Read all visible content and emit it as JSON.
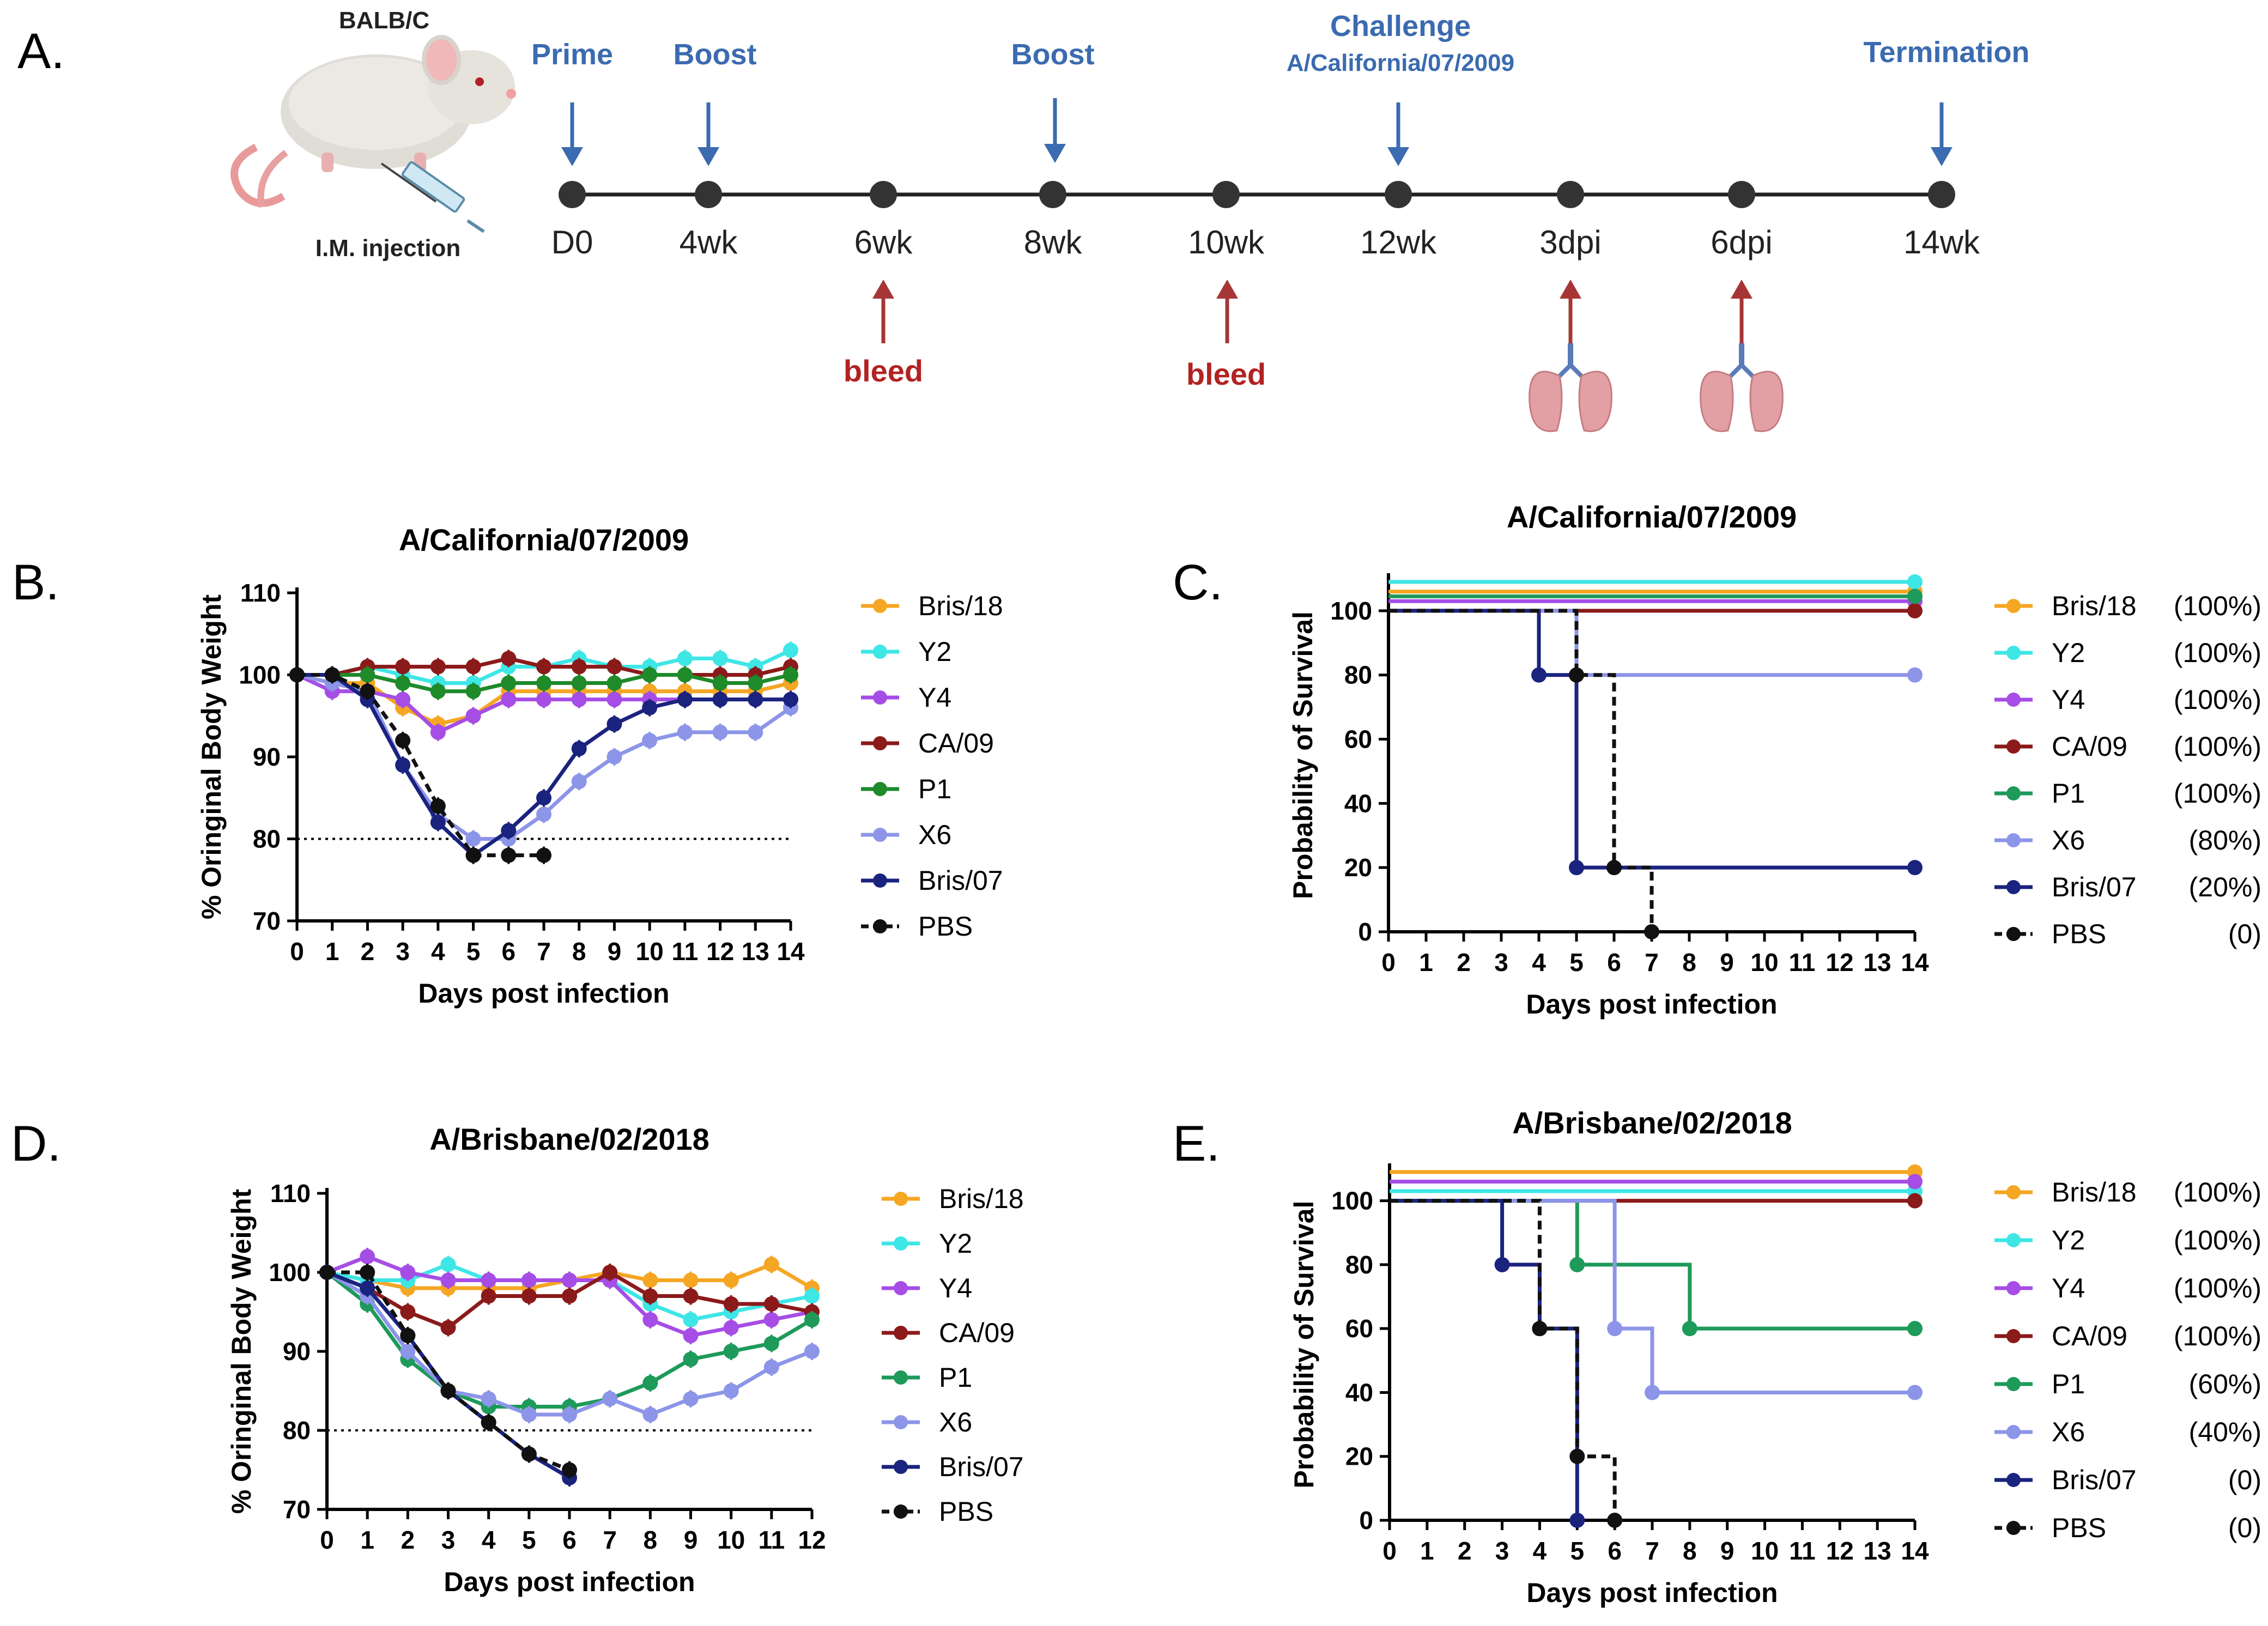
{
  "colors": {
    "bris18": "#f5a623",
    "y2": "#3ee6e6",
    "y4": "#a64de6",
    "ca09": "#8b1a1a",
    "p1": "#1e9a5a",
    "p1_b": "#1e8a2a",
    "x6": "#8c95e8",
    "bris07": "#1a237e",
    "pbs": "#111111",
    "timeline_blue": "#3b6bb0",
    "bleed_red": "#b22222"
  },
  "panel_a": {
    "label": "A.",
    "strain": "BALB/C",
    "injection": "I.M. injection",
    "top_labels": {
      "prime": "Prime",
      "boost1": "Boost",
      "boost2": "Boost",
      "challenge": "Challenge",
      "challenge_strain": "A/California/07/2009",
      "termination": "Termination"
    },
    "timepoints": [
      "D0",
      "4wk",
      "6wk",
      "8wk",
      "10wk",
      "12wk",
      "3dpi",
      "6dpi",
      "14wk"
    ],
    "bleed_labels": [
      "bleed",
      "bleed"
    ],
    "icons": [
      "mouse-icon",
      "syringe-icon",
      "lungs-icon"
    ]
  },
  "chart_data": [
    {
      "panel": "B.",
      "type": "line",
      "title": "A/California/07/2009",
      "xlabel": "Days post infection",
      "ylabel": "% Oringinal Body Weight",
      "x": [
        0,
        1,
        2,
        3,
        4,
        5,
        6,
        7,
        8,
        9,
        10,
        11,
        12,
        13,
        14
      ],
      "xlim": [
        0,
        14
      ],
      "ylim": [
        70,
        110
      ],
      "yticks": [
        70,
        80,
        90,
        100,
        110
      ],
      "threshold": 80,
      "series": [
        {
          "name": "Bris/18",
          "color": "#f5a623",
          "values": [
            100,
            99,
            99,
            96,
            94,
            95,
            98,
            98,
            98,
            98,
            98,
            98,
            98,
            98,
            99
          ]
        },
        {
          "name": "Y2",
          "color": "#3ee6e6",
          "values": [
            100,
            100,
            101,
            100,
            99,
            99,
            101,
            101,
            102,
            101,
            101,
            102,
            102,
            101,
            103
          ]
        },
        {
          "name": "Y4",
          "color": "#a64de6",
          "values": [
            100,
            98,
            98,
            97,
            93,
            95,
            97,
            97,
            97,
            97,
            97,
            97,
            97,
            97,
            97
          ]
        },
        {
          "name": "CA/09",
          "color": "#8b1a1a",
          "values": [
            100,
            100,
            101,
            101,
            101,
            101,
            102,
            101,
            101,
            101,
            100,
            100,
            100,
            100,
            101
          ]
        },
        {
          "name": "P1",
          "color": "#1e8a2a",
          "values": [
            100,
            100,
            100,
            99,
            98,
            98,
            99,
            99,
            99,
            99,
            100,
            100,
            99,
            99,
            100
          ]
        },
        {
          "name": "X6",
          "color": "#8c95e8",
          "values": [
            100,
            99,
            98,
            89,
            83,
            80,
            80,
            83,
            87,
            90,
            92,
            93,
            93,
            93,
            96
          ]
        },
        {
          "name": "Bris/07",
          "color": "#1a237e",
          "values": [
            100,
            100,
            97,
            89,
            82,
            78,
            81,
            85,
            91,
            94,
            96,
            97,
            97,
            97,
            97
          ]
        },
        {
          "name": "PBS",
          "color": "#111111",
          "dashed": true,
          "values": [
            100,
            100,
            98,
            92,
            84,
            78,
            78,
            78,
            null,
            null,
            null,
            null,
            null,
            null,
            null
          ]
        }
      ]
    },
    {
      "panel": "C.",
      "type": "line",
      "title": "A/California/07/2009",
      "xlabel": "Days post infection",
      "ylabel": "Probability of Survival",
      "x": [
        0,
        1,
        2,
        3,
        4,
        5,
        6,
        7,
        8,
        9,
        10,
        11,
        12,
        13,
        14
      ],
      "xlim": [
        0,
        14
      ],
      "ylim": [
        0,
        110
      ],
      "yticks": [
        0,
        20,
        40,
        60,
        80,
        100
      ],
      "series": [
        {
          "name": "Bris/18",
          "pct": "(100%)",
          "color": "#f5a623",
          "steps": [
            [
              0,
              100
            ],
            [
              14,
              100
            ]
          ],
          "offset": 6
        },
        {
          "name": "Y2",
          "pct": "(100%)",
          "color": "#3ee6e6",
          "steps": [
            [
              0,
              100
            ],
            [
              14,
              100
            ]
          ],
          "offset": 9
        },
        {
          "name": "Y4",
          "pct": "(100%)",
          "color": "#a64de6",
          "steps": [
            [
              0,
              100
            ],
            [
              14,
              100
            ]
          ],
          "offset": 3
        },
        {
          "name": "CA/09",
          "pct": "(100%)",
          "color": "#8b1a1a",
          "steps": [
            [
              0,
              100
            ],
            [
              14,
              100
            ]
          ],
          "offset": 0
        },
        {
          "name": "P1",
          "pct": "(100%)",
          "color": "#1e9a5a",
          "steps": [
            [
              0,
              100
            ],
            [
              14,
              100
            ]
          ],
          "offset": 4.5
        },
        {
          "name": "X6",
          "pct": "(80%)",
          "color": "#8c95e8",
          "steps": [
            [
              0,
              100
            ],
            [
              5,
              80
            ],
            [
              14,
              80
            ]
          ],
          "offset": 0
        },
        {
          "name": "Bris/07",
          "pct": "(20%)",
          "color": "#1a237e",
          "steps": [
            [
              0,
              100
            ],
            [
              4,
              80
            ],
            [
              5,
              20
            ],
            [
              14,
              20
            ]
          ],
          "offset": 0
        },
        {
          "name": "PBS",
          "pct": "(0)",
          "color": "#111111",
          "dashed": true,
          "steps": [
            [
              0,
              100
            ],
            [
              5,
              80
            ],
            [
              6,
              20
            ],
            [
              7,
              0
            ]
          ],
          "offset": 0
        }
      ]
    },
    {
      "panel": "D.",
      "type": "line",
      "title": "A/Brisbane/02/2018",
      "xlabel": "Days post infection",
      "ylabel": "% Oringinal Body Weight",
      "x": [
        0,
        1,
        2,
        3,
        4,
        5,
        6,
        7,
        8,
        9,
        10,
        11,
        12
      ],
      "xlim": [
        0,
        12
      ],
      "ylim": [
        70,
        110
      ],
      "yticks": [
        70,
        80,
        90,
        100,
        110
      ],
      "threshold": 80,
      "series": [
        {
          "name": "Bris/18",
          "color": "#f5a623",
          "values": [
            100,
            99,
            98,
            98,
            98,
            98,
            99,
            100,
            99,
            99,
            99,
            101,
            98
          ]
        },
        {
          "name": "Y2",
          "color": "#3ee6e6",
          "values": [
            100,
            99,
            99,
            101,
            99,
            99,
            99,
            99,
            96,
            94,
            95,
            96,
            97
          ]
        },
        {
          "name": "Y4",
          "color": "#a64de6",
          "values": [
            100,
            102,
            100,
            99,
            99,
            99,
            99,
            99,
            94,
            92,
            93,
            94,
            95
          ]
        },
        {
          "name": "CA/09",
          "color": "#8b1a1a",
          "values": [
            100,
            98,
            95,
            93,
            97,
            97,
            97,
            100,
            97,
            97,
            96,
            96,
            95
          ]
        },
        {
          "name": "P1",
          "color": "#1e9a5a",
          "values": [
            100,
            96,
            89,
            85,
            83,
            83,
            83,
            84,
            86,
            89,
            90,
            91,
            94
          ]
        },
        {
          "name": "X6",
          "color": "#8c95e8",
          "values": [
            100,
            97,
            90,
            85,
            84,
            82,
            82,
            84,
            82,
            84,
            85,
            88,
            90
          ]
        },
        {
          "name": "Bris/07",
          "color": "#1a237e",
          "values": [
            100,
            98,
            92,
            85,
            81,
            77,
            74,
            null,
            null,
            null,
            null,
            null,
            null
          ]
        },
        {
          "name": "PBS",
          "color": "#111111",
          "dashed": true,
          "values": [
            100,
            100,
            92,
            85,
            81,
            77,
            75,
            null,
            null,
            null,
            null,
            null,
            null
          ]
        }
      ]
    },
    {
      "panel": "E.",
      "type": "line",
      "title": "A/Brisbane/02/2018",
      "xlabel": "Days post infection",
      "ylabel": "Probability of Survival",
      "x": [
        0,
        1,
        2,
        3,
        4,
        5,
        6,
        7,
        8,
        9,
        10,
        11,
        12,
        13,
        14
      ],
      "xlim": [
        0,
        14
      ],
      "ylim": [
        0,
        110
      ],
      "yticks": [
        0,
        20,
        40,
        60,
        80,
        100
      ],
      "series": [
        {
          "name": "Bris/18",
          "pct": "(100%)",
          "color": "#f5a623",
          "steps": [
            [
              0,
              100
            ],
            [
              14,
              100
            ]
          ],
          "offset": 9
        },
        {
          "name": "Y2",
          "pct": "(100%)",
          "color": "#3ee6e6",
          "steps": [
            [
              0,
              100
            ],
            [
              14,
              100
            ]
          ],
          "offset": 3
        },
        {
          "name": "Y4",
          "pct": "(100%)",
          "color": "#a64de6",
          "steps": [
            [
              0,
              100
            ],
            [
              14,
              100
            ]
          ],
          "offset": 6
        },
        {
          "name": "CA/09",
          "pct": "(100%)",
          "color": "#8b1a1a",
          "steps": [
            [
              0,
              100
            ],
            [
              14,
              100
            ]
          ],
          "offset": 0
        },
        {
          "name": "P1",
          "pct": "(60%)",
          "color": "#1e9a5a",
          "steps": [
            [
              0,
              100
            ],
            [
              5,
              80
            ],
            [
              8,
              60
            ],
            [
              14,
              60
            ]
          ],
          "offset": 0
        },
        {
          "name": "X6",
          "pct": "(40%)",
          "color": "#8c95e8",
          "steps": [
            [
              0,
              100
            ],
            [
              6,
              60
            ],
            [
              7,
              40
            ],
            [
              14,
              40
            ]
          ],
          "offset": 0
        },
        {
          "name": "Bris/07",
          "pct": "(0)",
          "color": "#1a237e",
          "steps": [
            [
              0,
              100
            ],
            [
              3,
              80
            ],
            [
              4,
              60
            ],
            [
              5,
              0
            ]
          ],
          "offset": 0
        },
        {
          "name": "PBS",
          "pct": "(0)",
          "color": "#111111",
          "dashed": true,
          "steps": [
            [
              0,
              100
            ],
            [
              4,
              60
            ],
            [
              5,
              20
            ],
            [
              6,
              0
            ]
          ],
          "offset": 0
        }
      ]
    }
  ]
}
